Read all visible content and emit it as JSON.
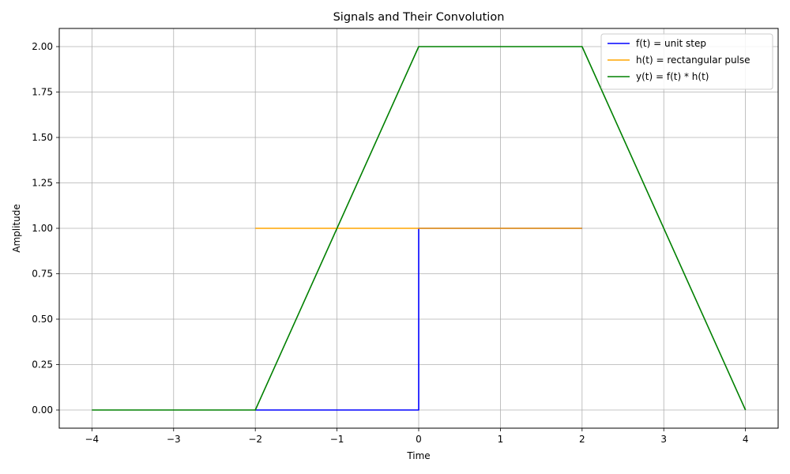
{
  "chart_data": {
    "type": "line",
    "title": "Signals and Their Convolution",
    "xlabel": "Time",
    "ylabel": "Amplitude",
    "xlim": [
      -4.4,
      4.4
    ],
    "ylim": [
      -0.1,
      2.1
    ],
    "x_ticks": [
      -4,
      -3,
      -2,
      -1,
      0,
      1,
      2,
      3,
      4
    ],
    "x_tick_labels": [
      "−4",
      "−3",
      "−2",
      "−1",
      "0",
      "1",
      "2",
      "3",
      "4"
    ],
    "y_ticks": [
      0,
      0.25,
      0.5,
      0.75,
      1.0,
      1.25,
      1.5,
      1.75,
      2.0
    ],
    "y_tick_labels": [
      "0.00",
      "0.25",
      "0.50",
      "0.75",
      "1.00",
      "1.25",
      "1.50",
      "1.75",
      "2.00"
    ],
    "grid": true,
    "legend_position": "top-right",
    "series": [
      {
        "name": "f(t) = unit step",
        "color": "#0000ff",
        "points": [
          [
            -2,
            0
          ],
          [
            0,
            0
          ],
          [
            0,
            1
          ],
          [
            2,
            1
          ]
        ]
      },
      {
        "name": "h(t) = rectangular pulse",
        "color": "#ffa500",
        "points": [
          [
            -2,
            1
          ],
          [
            2,
            1
          ]
        ]
      },
      {
        "name": "y(t) = f(t) * h(t)",
        "color": "#008000",
        "points": [
          [
            -4,
            0
          ],
          [
            -2,
            0
          ],
          [
            0,
            2
          ],
          [
            2,
            2
          ],
          [
            4,
            0
          ]
        ]
      }
    ]
  }
}
